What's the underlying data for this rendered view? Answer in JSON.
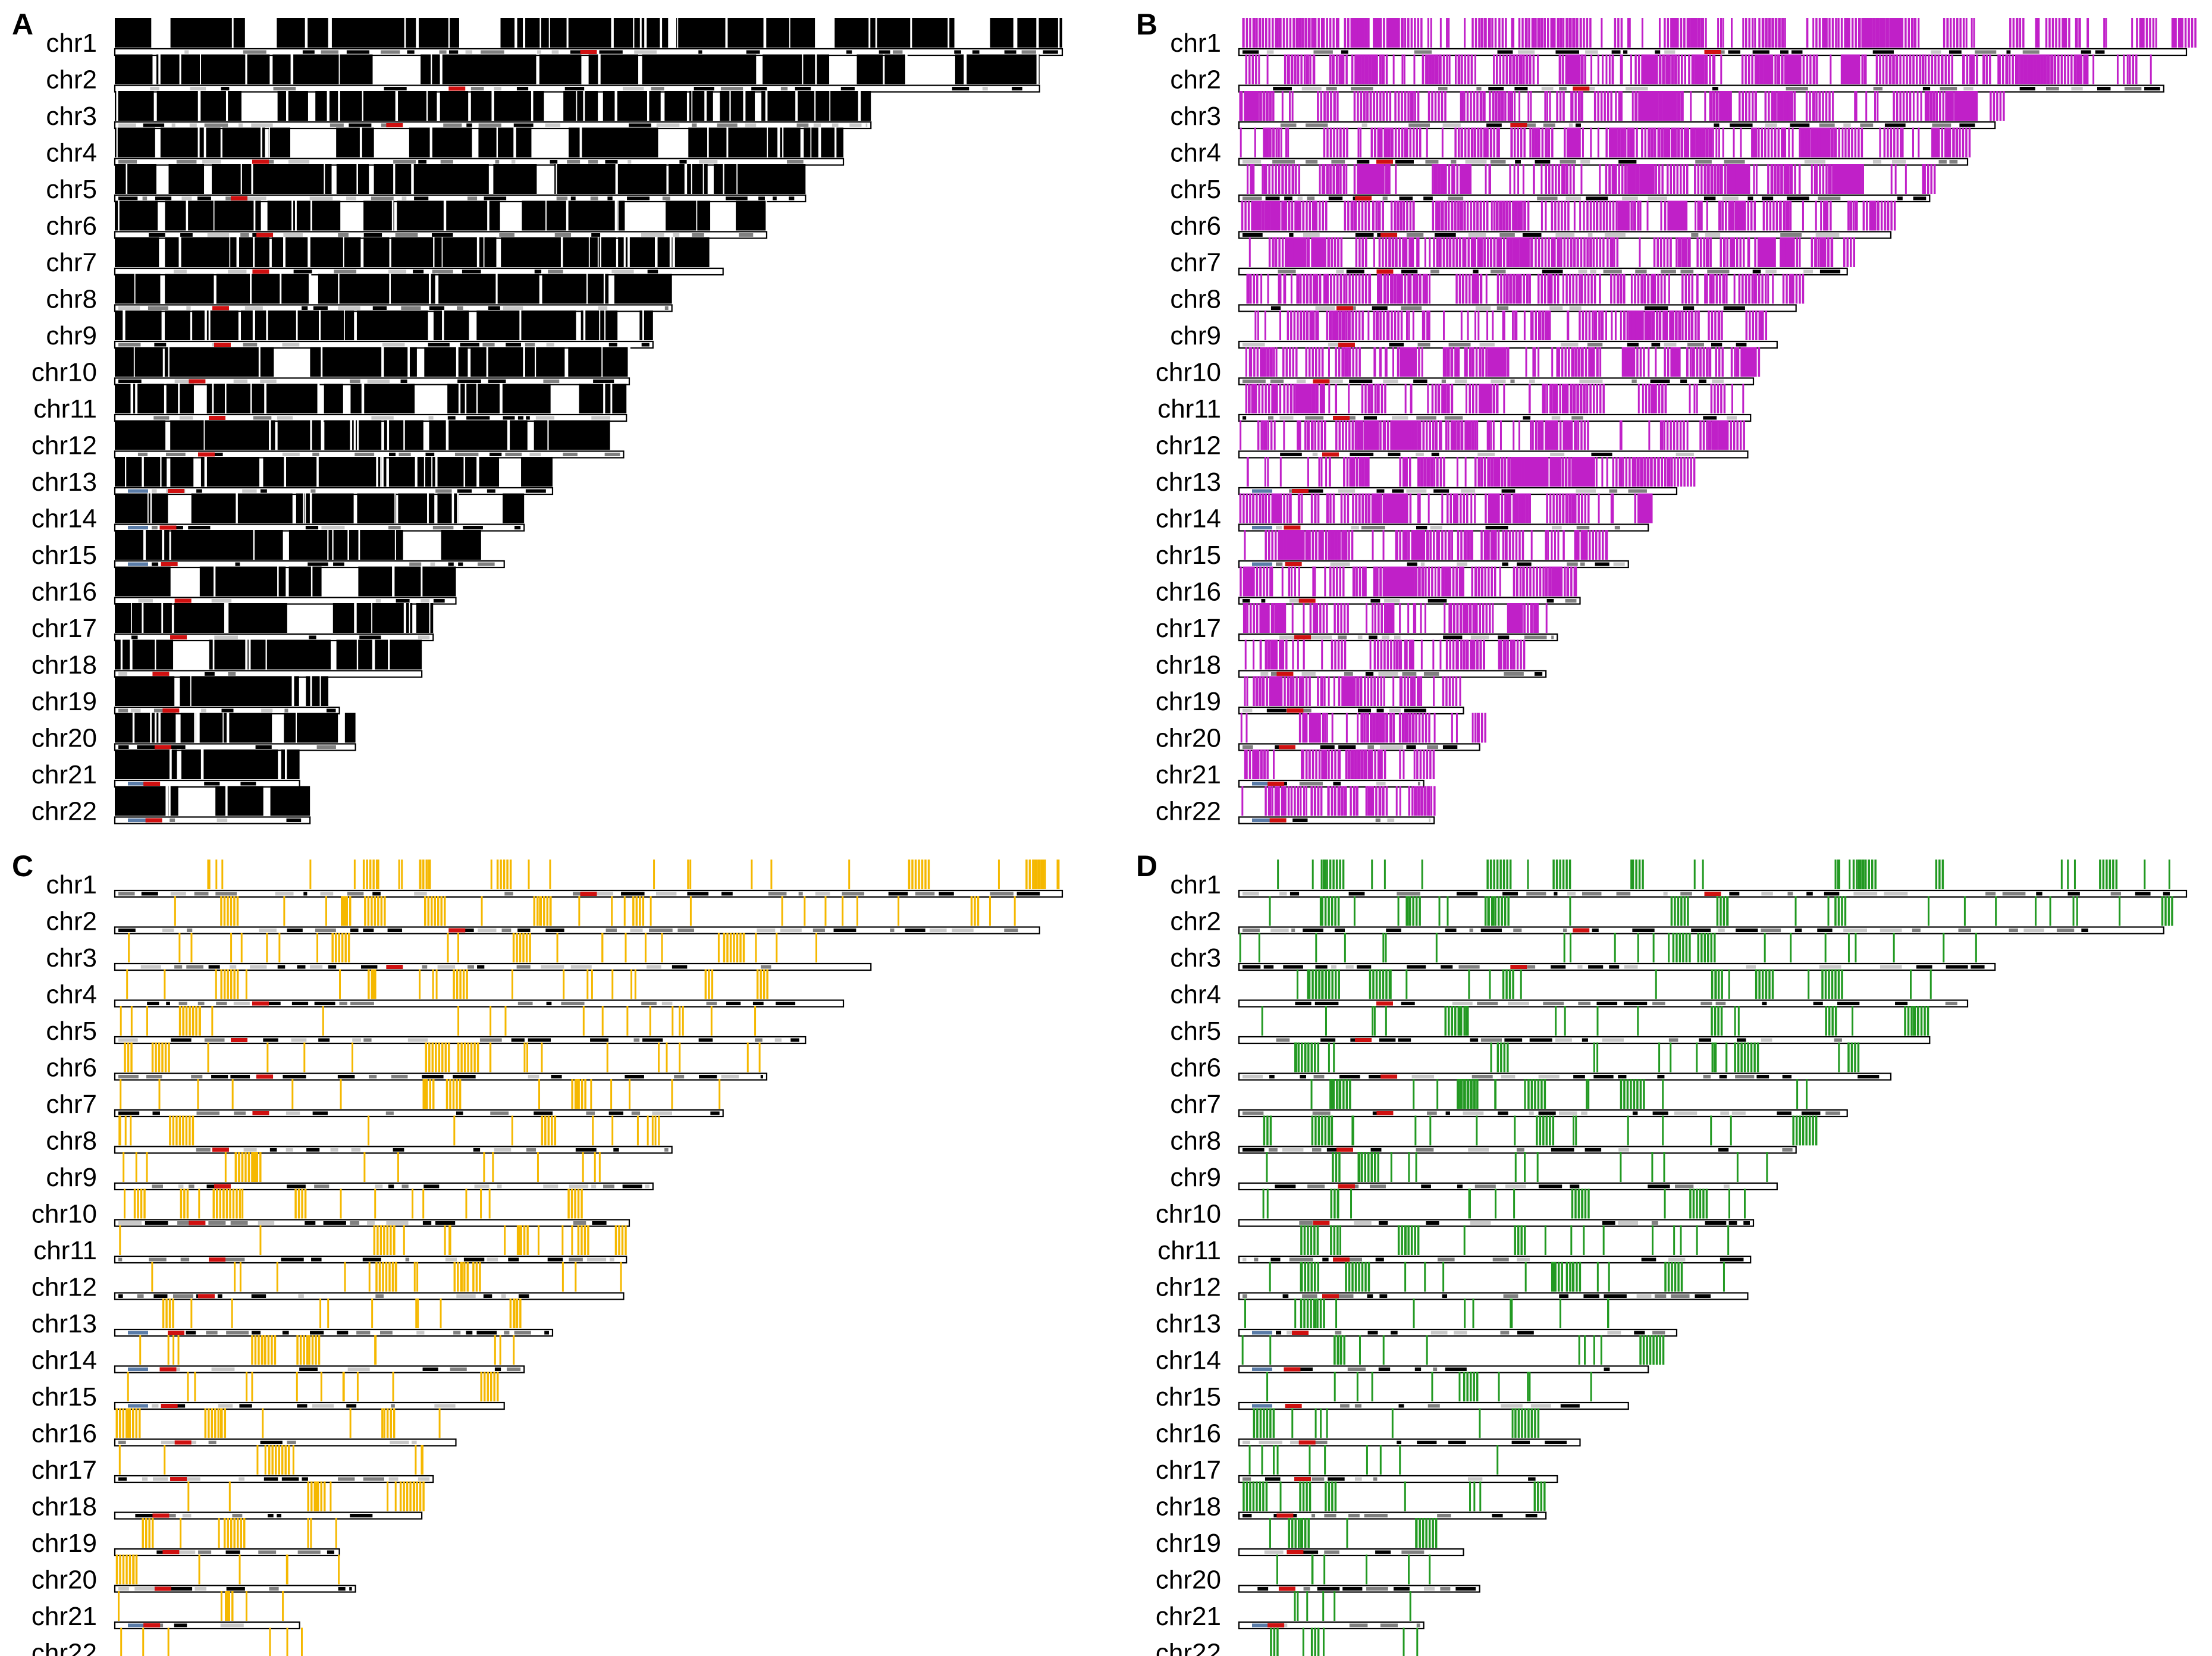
{
  "figure": {
    "chromosome_labels": [
      "chr1",
      "chr2",
      "chr3",
      "chr4",
      "chr5",
      "chr6",
      "chr7",
      "chr8",
      "chr9",
      "chr10",
      "chr11",
      "chr12",
      "chr13",
      "chr14",
      "chr15",
      "chr16",
      "chr17",
      "chr18",
      "chr19",
      "chr20",
      "chr21",
      "chr22"
    ],
    "relative_lengths": [
      1.0,
      0.976,
      0.798,
      0.769,
      0.729,
      0.688,
      0.642,
      0.588,
      0.568,
      0.543,
      0.54,
      0.537,
      0.462,
      0.432,
      0.411,
      0.36,
      0.336,
      0.324,
      0.237,
      0.254,
      0.195,
      0.206
    ],
    "acrocentric": [
      false,
      false,
      false,
      false,
      false,
      false,
      false,
      false,
      false,
      false,
      false,
      false,
      true,
      true,
      true,
      false,
      false,
      false,
      false,
      false,
      true,
      true
    ],
    "centromere_position": [
      0.5,
      0.37,
      0.37,
      0.2,
      0.18,
      0.23,
      0.24,
      0.19,
      0.2,
      0.16,
      0.2,
      0.18,
      0.14,
      0.13,
      0.14,
      0.2,
      0.2,
      0.15,
      0.25,
      0.2,
      0.2,
      0.2
    ],
    "colors": {
      "band_dark": "#000000",
      "band_gray": "#808080",
      "band_light": "#c8c8c8",
      "centromere": "#d01010",
      "stalk": "#5a7ca8",
      "outline": "#000000"
    },
    "panels": [
      {
        "letter": "A",
        "mark_color": "#000000",
        "density": "very high"
      },
      {
        "letter": "B",
        "mark_color": "#c020c8",
        "density": "high"
      },
      {
        "letter": "C",
        "mark_color": "#f5b800",
        "density": "low"
      },
      {
        "letter": "D",
        "mark_color": "#229922",
        "density": "low"
      }
    ]
  }
}
